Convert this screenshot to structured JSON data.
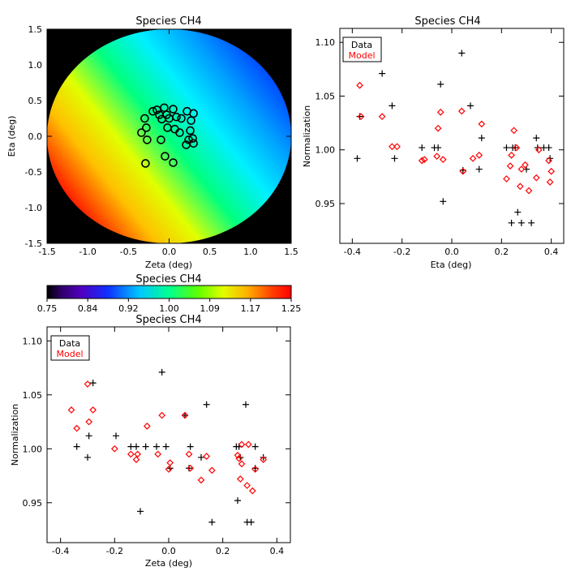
{
  "chart_data": [
    {
      "type": "heatmap",
      "title": "Species CH4",
      "xlabel": "Zeta (deg)",
      "ylabel": "Eta (deg)",
      "xlim": [
        -1.5,
        1.5
      ],
      "ylim": [
        -1.5,
        1.5
      ],
      "xticks": [
        "-1.5",
        "-1.0",
        "-0.5",
        "0.0",
        "0.5",
        "1.0",
        "1.5"
      ],
      "yticks": [
        "-1.5",
        "-1.0",
        "-0.5",
        "0.0",
        "0.5",
        "1.0",
        "1.5"
      ],
      "field_radius_deg": 1.5,
      "gradient_low_color": "#ff1400",
      "gradient_mid_color": "#00ff80",
      "gradient_high_color": "#0060ff",
      "background_color": "#000000",
      "points": [
        {
          "zeta": -0.34,
          "eta": 0.05
        },
        {
          "zeta": -0.3,
          "eta": 0.25
        },
        {
          "zeta": -0.28,
          "eta": 0.12
        },
        {
          "zeta": -0.27,
          "eta": -0.05
        },
        {
          "zeta": -0.29,
          "eta": -0.38
        },
        {
          "zeta": -0.2,
          "eta": 0.35
        },
        {
          "zeta": -0.15,
          "eta": 0.37
        },
        {
          "zeta": -0.12,
          "eta": 0.3
        },
        {
          "zeta": -0.09,
          "eta": 0.24
        },
        {
          "zeta": -0.06,
          "eta": 0.4
        },
        {
          "zeta": -0.03,
          "eta": 0.3
        },
        {
          "zeta": 0.0,
          "eta": 0.25
        },
        {
          "zeta": -0.02,
          "eta": 0.12
        },
        {
          "zeta": -0.1,
          "eta": -0.05
        },
        {
          "zeta": -0.05,
          "eta": -0.28
        },
        {
          "zeta": 0.05,
          "eta": -0.37
        },
        {
          "zeta": 0.05,
          "eta": 0.38
        },
        {
          "zeta": 0.09,
          "eta": 0.27
        },
        {
          "zeta": 0.07,
          "eta": 0.1
        },
        {
          "zeta": 0.15,
          "eta": 0.25
        },
        {
          "zeta": 0.13,
          "eta": 0.05
        },
        {
          "zeta": 0.22,
          "eta": 0.35
        },
        {
          "zeta": 0.27,
          "eta": 0.22
        },
        {
          "zeta": 0.3,
          "eta": 0.32
        },
        {
          "zeta": 0.26,
          "eta": 0.08
        },
        {
          "zeta": 0.24,
          "eta": -0.05
        },
        {
          "zeta": 0.29,
          "eta": -0.03
        },
        {
          "zeta": 0.3,
          "eta": -0.1
        },
        {
          "zeta": 0.21,
          "eta": -0.12
        }
      ]
    },
    {
      "type": "scatter",
      "title": "Species CH4",
      "xlabel": "Eta (deg)",
      "ylabel": "Normalization",
      "xlim": [
        -0.45,
        0.45
      ],
      "ylim": [
        0.913,
        1.113
      ],
      "xticks": [
        "-0.4",
        "-0.2",
        "0.0",
        "0.2",
        "0.4"
      ],
      "yticks": [
        "0.95",
        "1.00",
        "1.05",
        "1.10"
      ],
      "legend": {
        "position": "top-left",
        "entries": [
          {
            "label": "Data",
            "color": "#000000"
          },
          {
            "label": "Model",
            "color": "#ff0000"
          }
        ]
      },
      "series": [
        {
          "name": "Data",
          "marker": "plus",
          "color": "#000000",
          "points": [
            [
              -0.38,
              0.992
            ],
            [
              -0.37,
              1.031
            ],
            [
              -0.28,
              1.071
            ],
            [
              -0.24,
              1.041
            ],
            [
              -0.23,
              0.992
            ],
            [
              -0.12,
              1.002
            ],
            [
              -0.07,
              1.002
            ],
            [
              -0.055,
              1.002
            ],
            [
              -0.045,
              1.061
            ],
            [
              -0.035,
              0.952
            ],
            [
              0.04,
              1.09
            ],
            [
              0.045,
              0.981
            ],
            [
              0.075,
              1.041
            ],
            [
              0.11,
              0.982
            ],
            [
              0.12,
              1.011
            ],
            [
              0.22,
              1.002
            ],
            [
              0.24,
              0.932
            ],
            [
              0.245,
              1.002
            ],
            [
              0.255,
              1.002
            ],
            [
              0.265,
              0.942
            ],
            [
              0.28,
              0.932
            ],
            [
              0.3,
              0.982
            ],
            [
              0.32,
              0.932
            ],
            [
              0.34,
              1.011
            ],
            [
              0.345,
              1.002
            ],
            [
              0.37,
              1.002
            ],
            [
              0.39,
              1.002
            ],
            [
              0.395,
              0.992
            ]
          ]
        },
        {
          "name": "Model",
          "marker": "diamond",
          "color": "#ff0000",
          "points": [
            [
              -0.37,
              1.06
            ],
            [
              -0.365,
              1.031
            ],
            [
              -0.28,
              1.031
            ],
            [
              -0.24,
              1.003
            ],
            [
              -0.22,
              1.003
            ],
            [
              -0.12,
              0.99
            ],
            [
              -0.11,
              0.991
            ],
            [
              -0.06,
              0.994
            ],
            [
              -0.055,
              1.02
            ],
            [
              -0.045,
              1.035
            ],
            [
              -0.035,
              0.991
            ],
            [
              0.04,
              1.036
            ],
            [
              0.045,
              0.98
            ],
            [
              0.085,
              0.992
            ],
            [
              0.11,
              0.995
            ],
            [
              0.12,
              1.024
            ],
            [
              0.22,
              0.973
            ],
            [
              0.235,
              0.985
            ],
            [
              0.24,
              0.995
            ],
            [
              0.25,
              1.018
            ],
            [
              0.26,
              1.002
            ],
            [
              0.275,
              0.966
            ],
            [
              0.28,
              0.982
            ],
            [
              0.295,
              0.986
            ],
            [
              0.31,
              0.962
            ],
            [
              0.34,
              0.974
            ],
            [
              0.35,
              1.0
            ],
            [
              0.39,
              0.99
            ],
            [
              0.395,
              0.97
            ],
            [
              0.4,
              0.98
            ]
          ]
        }
      ]
    },
    {
      "type": "colorbar",
      "title": "Species CH4",
      "ticks": [
        "0.75",
        "0.84",
        "0.92",
        "1.00",
        "1.09",
        "1.17",
        "1.25"
      ],
      "range": [
        0.75,
        1.25
      ]
    },
    {
      "type": "scatter",
      "title": "Species CH4",
      "xlabel": "Zeta (deg)",
      "ylabel": "Normalization",
      "xlim": [
        -0.45,
        0.45
      ],
      "ylim": [
        0.913,
        1.113
      ],
      "xticks": [
        "-0.4",
        "-0.2",
        "0.0",
        "0.2",
        "0.4"
      ],
      "yticks": [
        "0.95",
        "1.00",
        "1.05",
        "1.10"
      ],
      "legend": {
        "position": "top-left",
        "entries": [
          {
            "label": "Data",
            "color": "#000000"
          },
          {
            "label": "Model",
            "color": "#ff0000"
          }
        ]
      },
      "series": [
        {
          "name": "Data",
          "marker": "plus",
          "color": "#000000",
          "points": [
            [
              -0.34,
              1.002
            ],
            [
              -0.3,
              0.992
            ],
            [
              -0.295,
              1.012
            ],
            [
              -0.28,
              1.061
            ],
            [
              -0.195,
              1.012
            ],
            [
              -0.14,
              1.002
            ],
            [
              -0.12,
              1.002
            ],
            [
              -0.105,
              0.942
            ],
            [
              -0.085,
              1.002
            ],
            [
              -0.045,
              1.002
            ],
            [
              -0.025,
              1.071
            ],
            [
              -0.01,
              1.002
            ],
            [
              0.005,
              0.982
            ],
            [
              0.06,
              1.031
            ],
            [
              0.075,
              0.982
            ],
            [
              0.08,
              1.002
            ],
            [
              0.12,
              0.992
            ],
            [
              0.14,
              1.041
            ],
            [
              0.16,
              0.932
            ],
            [
              0.25,
              1.002
            ],
            [
              0.255,
              0.952
            ],
            [
              0.26,
              1.002
            ],
            [
              0.265,
              0.992
            ],
            [
              0.285,
              1.041
            ],
            [
              0.29,
              0.932
            ],
            [
              0.305,
              0.932
            ],
            [
              0.32,
              1.002
            ],
            [
              0.32,
              0.982
            ],
            [
              0.35,
              0.992
            ]
          ]
        },
        {
          "name": "Model",
          "marker": "diamond",
          "color": "#ff0000",
          "points": [
            [
              -0.36,
              1.036
            ],
            [
              -0.34,
              1.019
            ],
            [
              -0.3,
              1.06
            ],
            [
              -0.295,
              1.025
            ],
            [
              -0.28,
              1.036
            ],
            [
              -0.2,
              1.0
            ],
            [
              -0.14,
              0.995
            ],
            [
              -0.12,
              0.99
            ],
            [
              -0.115,
              0.995
            ],
            [
              -0.08,
              1.021
            ],
            [
              -0.04,
              0.995
            ],
            [
              -0.025,
              1.031
            ],
            [
              0.0,
              0.981
            ],
            [
              0.005,
              0.987
            ],
            [
              0.06,
              1.031
            ],
            [
              0.075,
              0.995
            ],
            [
              0.08,
              0.982
            ],
            [
              0.12,
              0.971
            ],
            [
              0.14,
              0.993
            ],
            [
              0.16,
              0.98
            ],
            [
              0.255,
              0.994
            ],
            [
              0.26,
              0.991
            ],
            [
              0.265,
              0.972
            ],
            [
              0.27,
              0.986
            ],
            [
              0.27,
              1.004
            ],
            [
              0.29,
              0.966
            ],
            [
              0.295,
              1.004
            ],
            [
              0.31,
              0.961
            ],
            [
              0.32,
              0.981
            ],
            [
              0.35,
              0.99
            ]
          ]
        }
      ]
    }
  ]
}
